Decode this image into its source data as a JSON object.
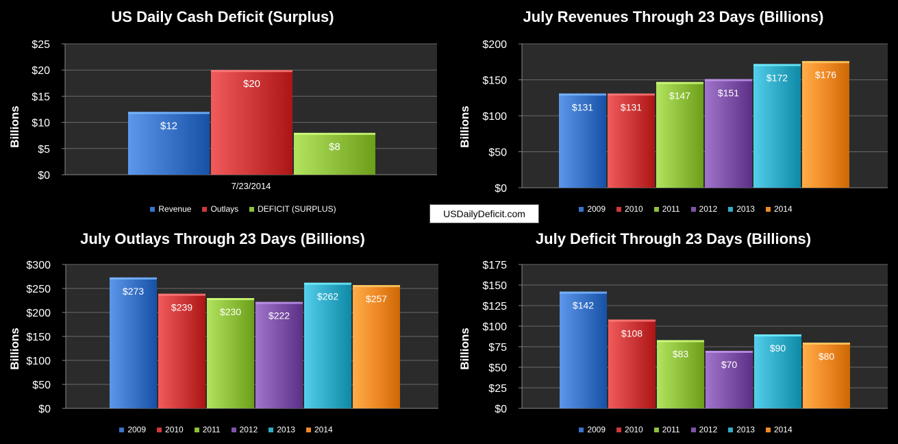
{
  "website_label": "USDailyDeficit.com",
  "colors": {
    "blue": "#3a74c8",
    "red": "#cf3838",
    "green": "#8fc13c",
    "purple": "#7e52a8",
    "cyan": "#31acc8",
    "orange": "#ef8a26",
    "plot_bg": "#2b2b2b",
    "grid": "#6a6a6a"
  },
  "chart_data": [
    {
      "type": "bar",
      "title": "US Daily Cash Deficit (Surplus)",
      "ylabel": "Billions",
      "xlabel": "",
      "categories": [
        "7/23/2014"
      ],
      "series": [
        {
          "name": "Revenue",
          "values": [
            12
          ],
          "labels": [
            "$12"
          ],
          "color": "#3a74c8"
        },
        {
          "name": "Outlays",
          "values": [
            20
          ],
          "labels": [
            "$20"
          ],
          "color": "#cf3838"
        },
        {
          "name": "DEFICIT (SURPLUS)",
          "values": [
            8
          ],
          "labels": [
            "$8"
          ],
          "color": "#8fc13c"
        }
      ],
      "ylim": [
        0,
        25
      ],
      "yticks": [
        0,
        5,
        10,
        15,
        20,
        25
      ],
      "ytick_labels": [
        "$0",
        "$5",
        "$10",
        "$15",
        "$20",
        "$25"
      ],
      "grid": true,
      "legend": "bottom"
    },
    {
      "type": "bar",
      "title": "July Revenues Through 23 Days (Billions)",
      "ylabel": "Billions",
      "xlabel": "",
      "categories": [
        ""
      ],
      "series": [
        {
          "name": "2009",
          "values": [
            131
          ],
          "labels": [
            "$131"
          ],
          "color": "#3a74c8"
        },
        {
          "name": "2010",
          "values": [
            131
          ],
          "labels": [
            "$131"
          ],
          "color": "#cf3838"
        },
        {
          "name": "2011",
          "values": [
            147
          ],
          "labels": [
            "$147"
          ],
          "color": "#8fc13c"
        },
        {
          "name": "2012",
          "values": [
            151
          ],
          "labels": [
            "$151"
          ],
          "color": "#7e52a8"
        },
        {
          "name": "2013",
          "values": [
            172
          ],
          "labels": [
            "$172"
          ],
          "color": "#31acc8"
        },
        {
          "name": "2014",
          "values": [
            176
          ],
          "labels": [
            "$176"
          ],
          "color": "#ef8a26"
        }
      ],
      "ylim": [
        0,
        200
      ],
      "yticks": [
        0,
        50,
        100,
        150,
        200
      ],
      "ytick_labels": [
        "$0",
        "$50",
        "$100",
        "$150",
        "$200"
      ],
      "grid": true,
      "legend": "bottom"
    },
    {
      "type": "bar",
      "title": "July Outlays Through 23 Days (Billions)",
      "ylabel": "Billions",
      "xlabel": "",
      "categories": [
        ""
      ],
      "series": [
        {
          "name": "2009",
          "values": [
            273
          ],
          "labels": [
            "$273"
          ],
          "color": "#3a74c8"
        },
        {
          "name": "2010",
          "values": [
            239
          ],
          "labels": [
            "$239"
          ],
          "color": "#cf3838"
        },
        {
          "name": "2011",
          "values": [
            230
          ],
          "labels": [
            "$230"
          ],
          "color": "#8fc13c"
        },
        {
          "name": "2012",
          "values": [
            222
          ],
          "labels": [
            "$222"
          ],
          "color": "#7e52a8"
        },
        {
          "name": "2013",
          "values": [
            262
          ],
          "labels": [
            "$262"
          ],
          "color": "#31acc8"
        },
        {
          "name": "2014",
          "values": [
            257
          ],
          "labels": [
            "$257"
          ],
          "color": "#ef8a26"
        }
      ],
      "ylim": [
        0,
        300
      ],
      "yticks": [
        0,
        50,
        100,
        150,
        200,
        250,
        300
      ],
      "ytick_labels": [
        "$0",
        "$50",
        "$100",
        "$150",
        "$200",
        "$250",
        "$300"
      ],
      "grid": true,
      "legend": "bottom"
    },
    {
      "type": "bar",
      "title": "July Deficit Through 23 Days (Billions)",
      "ylabel": "Billions",
      "xlabel": "",
      "categories": [
        ""
      ],
      "series": [
        {
          "name": "2009",
          "values": [
            142
          ],
          "labels": [
            "$142"
          ],
          "color": "#3a74c8"
        },
        {
          "name": "2010",
          "values": [
            108
          ],
          "labels": [
            "$108"
          ],
          "color": "#cf3838"
        },
        {
          "name": "2011",
          "values": [
            83
          ],
          "labels": [
            "$83"
          ],
          "color": "#8fc13c"
        },
        {
          "name": "2012",
          "values": [
            70
          ],
          "labels": [
            "$70"
          ],
          "color": "#7e52a8"
        },
        {
          "name": "2013",
          "values": [
            90
          ],
          "labels": [
            "$90"
          ],
          "color": "#31acc8"
        },
        {
          "name": "2014",
          "values": [
            80
          ],
          "labels": [
            "$80"
          ],
          "color": "#ef8a26"
        }
      ],
      "ylim": [
        0,
        175
      ],
      "yticks": [
        0,
        25,
        50,
        75,
        100,
        125,
        150,
        175
      ],
      "ytick_labels": [
        "$0",
        "$25",
        "$50",
        "$75",
        "$100",
        "$125",
        "$150",
        "$175"
      ],
      "grid": true,
      "legend": "bottom"
    }
  ]
}
